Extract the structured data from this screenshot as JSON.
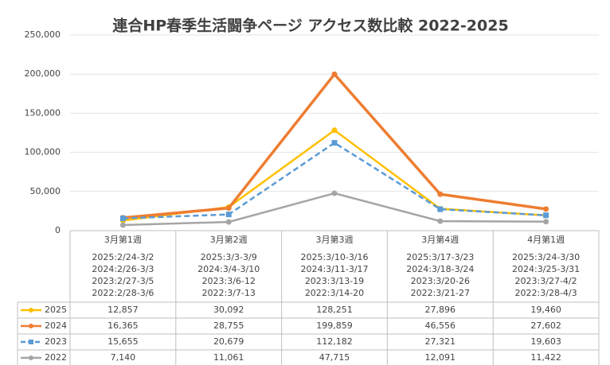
{
  "chart_data": {
    "type": "line",
    "title": "連合HP春季生活闘争ページ アクセス数比較 2022-2025",
    "categories": [
      "3月第1週",
      "3月第2週",
      "3月第3週",
      "3月第4週",
      "4月第1週"
    ],
    "category_dates": [
      [
        "2025:2/24-3/2",
        "2024:2/26-3/3",
        "2023:2/27-3/5",
        "2022:2/28-3/6"
      ],
      [
        "2025:3/3-3/9",
        "2024:3/4-3/10",
        "2023:3/6-12",
        "2022:3/7-13"
      ],
      [
        "2025:3/10-3/16",
        "2024:3/11-3/17",
        "2023:3/13-19",
        "2022:3/14-20"
      ],
      [
        "2025:3/17-3/23",
        "2024:3/18-3/24",
        "2023:3/20-26",
        "2022:3/21-27"
      ],
      [
        "2025:3/24-3/30",
        "2024:3/25-3/31",
        "2023:3/27-4/2",
        "2022:3/28-4/3"
      ]
    ],
    "series": [
      {
        "name": "2025",
        "color": "#FFC000",
        "line_style": "solid",
        "marker": "circle",
        "values": [
          12857,
          30092,
          128251,
          27896,
          19460
        ],
        "value_labels": [
          "12,857",
          "30,092",
          "128,251",
          "27,896",
          "19,460"
        ]
      },
      {
        "name": "2024",
        "color": "#ED7D31",
        "line_style": "solid",
        "marker": "circle",
        "values": [
          16365,
          28755,
          199859,
          46556,
          27602
        ],
        "value_labels": [
          "16,365",
          "28,755",
          "199,859",
          "46,556",
          "27,602"
        ]
      },
      {
        "name": "2023",
        "color": "#5B9BD5",
        "line_style": "dashed",
        "marker": "square",
        "values": [
          15655,
          20679,
          112182,
          27321,
          19603
        ],
        "value_labels": [
          "15,655",
          "20,679",
          "112,182",
          "27,321",
          "19,603"
        ]
      },
      {
        "name": "2022",
        "color": "#A5A5A5",
        "line_style": "solid",
        "marker": "circle",
        "values": [
          7140,
          11061,
          47715,
          12091,
          11422
        ],
        "value_labels": [
          "7,140",
          "11,061",
          "47,715",
          "12,091",
          "11,422"
        ]
      }
    ],
    "ylim": [
      0,
      250000
    ],
    "yticks": [
      0,
      {
        "value": 50000,
        "label": "50,000"
      },
      {
        "value": 100000,
        "label": "100,000"
      },
      {
        "value": 150000,
        "label": "150,000"
      },
      {
        "value": 200000,
        "label": "200,000"
      },
      {
        "value": 250000,
        "label": "250,000"
      }
    ],
    "grid": true
  }
}
